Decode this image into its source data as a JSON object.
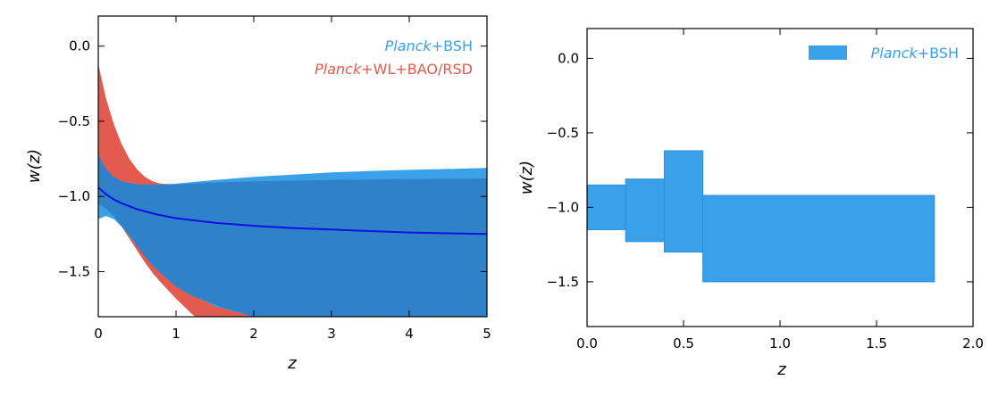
{
  "chart_data": [
    {
      "type": "area",
      "xlabel": "z",
      "ylabel": "w(z)",
      "xlim": [
        0,
        5
      ],
      "ylim": [
        -1.8,
        0.2
      ],
      "xticks": [
        0,
        1,
        2,
        3,
        4,
        5
      ],
      "yticks": [
        0.0,
        -0.5,
        -1.0,
        -1.5
      ],
      "xtick_labels": [
        "0",
        "1",
        "2",
        "3",
        "4",
        "5"
      ],
      "ytick_labels": [
        "0.0",
        "−0.5",
        "−1.0",
        "−1.5"
      ],
      "legend": {
        "placement": "top-right"
      },
      "series": [
        {
          "name": "Planck+WL+BAO/RSD",
          "legend_parts": [
            "Planck",
            "+WL+BAO/RSD"
          ],
          "kind": "band",
          "color": "#e35b4f",
          "x": [
            0,
            0.1,
            0.2,
            0.3,
            0.4,
            0.5,
            0.6,
            0.7,
            0.8,
            1.0,
            1.2,
            1.4,
            1.6,
            2.0,
            2.5,
            3.0,
            4.0,
            5.0
          ],
          "upper": [
            -0.12,
            -0.35,
            -0.52,
            -0.65,
            -0.75,
            -0.82,
            -0.87,
            -0.9,
            -0.915,
            -0.92,
            -0.915,
            -0.91,
            -0.905,
            -0.9,
            -0.895,
            -0.89,
            -0.885,
            -0.88
          ],
          "lower": [
            -1.05,
            -1.08,
            -1.13,
            -1.2,
            -1.28,
            -1.36,
            -1.44,
            -1.51,
            -1.57,
            -1.68,
            -1.78,
            -1.86,
            -1.93,
            -2.05,
            -2.15,
            -2.22,
            -2.3,
            -2.35
          ]
        },
        {
          "name": "Planck+BSH",
          "legend_parts": [
            "Planck",
            "+BSH"
          ],
          "kind": "band",
          "color": "#3aa1e8",
          "x": [
            0,
            0.1,
            0.2,
            0.3,
            0.5,
            0.7,
            1.0,
            1.5,
            2.0,
            2.5,
            3.0,
            3.5,
            4.0,
            4.5,
            5.0
          ],
          "upper": [
            -0.72,
            -0.82,
            -0.87,
            -0.9,
            -0.92,
            -0.925,
            -0.915,
            -0.89,
            -0.87,
            -0.855,
            -0.84,
            -0.83,
            -0.823,
            -0.817,
            -0.81
          ],
          "lower": [
            -1.15,
            -1.13,
            -1.15,
            -1.2,
            -1.33,
            -1.46,
            -1.6,
            -1.73,
            -1.8,
            -1.84,
            -1.87,
            -1.88,
            -1.89,
            -1.9,
            -1.9
          ]
        },
        {
          "name": "overlap",
          "kind": "band",
          "color": "#2f82c9",
          "x": [
            0,
            0.1,
            0.2,
            0.3,
            0.4,
            0.5,
            0.6,
            0.7,
            0.8,
            1.0,
            1.2,
            1.4,
            1.6,
            2.0,
            2.5,
            3.0,
            4.0,
            5.0
          ],
          "upper": [
            -0.72,
            -0.82,
            -0.87,
            -0.9,
            -0.91,
            -0.92,
            -0.92,
            -0.92,
            -0.92,
            -0.92,
            -0.915,
            -0.91,
            -0.905,
            -0.9,
            -0.895,
            -0.89,
            -0.885,
            -0.88
          ],
          "lower": [
            -1.05,
            -1.08,
            -1.13,
            -1.2,
            -1.26,
            -1.33,
            -1.4,
            -1.46,
            -1.51,
            -1.6,
            -1.66,
            -1.7,
            -1.74,
            -1.8,
            -1.84,
            -1.87,
            -1.89,
            -1.9
          ]
        },
        {
          "name": "fiducial",
          "kind": "line",
          "color": "#1010e0",
          "x": [
            0,
            0.1,
            0.2,
            0.3,
            0.5,
            0.75,
            1.0,
            1.5,
            2.0,
            2.5,
            3.0,
            3.5,
            4.0,
            4.5,
            5.0
          ],
          "y": [
            -0.94,
            -0.985,
            -1.02,
            -1.045,
            -1.085,
            -1.12,
            -1.145,
            -1.175,
            -1.195,
            -1.21,
            -1.22,
            -1.23,
            -1.24,
            -1.245,
            -1.25
          ]
        }
      ]
    },
    {
      "type": "bar",
      "xlabel": "z",
      "ylabel": "w(z)",
      "xlim": [
        0,
        2.0
      ],
      "ylim": [
        -1.8,
        0.2
      ],
      "xticks": [
        0.0,
        0.5,
        1.0,
        1.5,
        2.0
      ],
      "yticks": [
        0.0,
        -0.5,
        -1.0,
        -1.5
      ],
      "xtick_labels": [
        "0.0",
        "0.5",
        "1.0",
        "1.5",
        "2.0"
      ],
      "ytick_labels": [
        "0.0",
        "−0.5",
        "−1.0",
        "−1.5"
      ],
      "legend": {
        "placement": "top-right",
        "parts": [
          "Planck",
          "+BSH"
        ]
      },
      "bins": [
        {
          "x0": 0.0,
          "x1": 0.2,
          "ylow": -1.15,
          "yhigh": -0.85
        },
        {
          "x0": 0.2,
          "x1": 0.4,
          "ylow": -1.23,
          "yhigh": -0.81
        },
        {
          "x0": 0.4,
          "x1": 0.6,
          "ylow": -1.3,
          "yhigh": -0.62
        },
        {
          "x0": 0.6,
          "x1": 1.8,
          "ylow": -1.5,
          "yhigh": -0.92
        }
      ],
      "color": "#3aa1e8"
    }
  ]
}
